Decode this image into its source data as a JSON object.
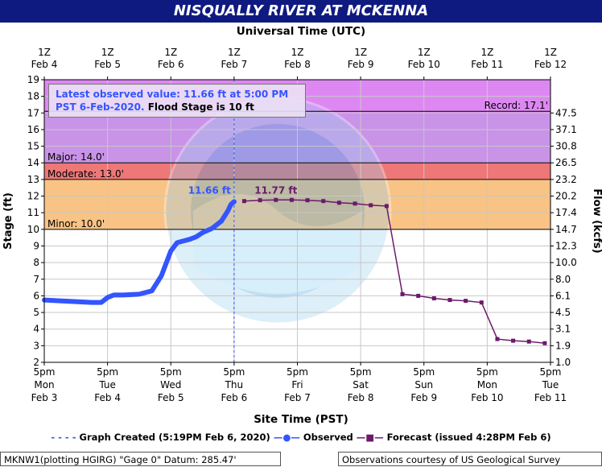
{
  "header": {
    "title": "NISQUALLY RIVER AT MCKENNA",
    "top_axis_label": "Universal Time (UTC)",
    "bottom_axis_label": "Site Time (PST)"
  },
  "latest_box": {
    "line1": "Latest observed value: 11.66 ft at 5:00 PM",
    "line2_blue": "PST 6-Feb-2020.",
    "line2_black": "Flood Stage is 10 ft"
  },
  "legend": {
    "graph_created": "Graph Created (5:19PM Feb 6, 2020)",
    "observed": "Observed",
    "forecast": "Forecast (issued 4:28PM Feb 6)"
  },
  "footer": {
    "left": "MKNW1(plotting HGIRG) \"Gage 0\" Datum: 285.47'",
    "right": "Observations courtesy of US Geological Survey"
  },
  "colors": {
    "header_bg": "#0f1a80",
    "record_band": "#dd88f2",
    "major_band": "#c993e8",
    "moderate_band": "#ee7777",
    "minor_band": "#f8c384",
    "observed": "#3355ff",
    "forecast": "#6b1a6b"
  },
  "chart_data": {
    "type": "line",
    "title": "NISQUALLY RIVER AT MCKENNA",
    "ylabel": "Stage (ft)",
    "y2label": "Flow (kcfs)",
    "xlabel": "Site Time (PST)",
    "x2label": "Universal Time (UTC)",
    "ylim": [
      2,
      19
    ],
    "xlim_days_label": [
      "Feb 3 5pm",
      "Feb 11 5pm"
    ],
    "grid": true,
    "legend_position": "bottom",
    "y_ticks": [
      "2",
      "3",
      "4",
      "5",
      "6",
      "7",
      "8",
      "9",
      "10",
      "11",
      "12",
      "13",
      "14",
      "15",
      "16",
      "17",
      "18",
      "19"
    ],
    "flow_ticks": [
      {
        "stage": 2,
        "label": "1.0"
      },
      {
        "stage": 3,
        "label": "1.9"
      },
      {
        "stage": 4,
        "label": "3.1"
      },
      {
        "stage": 5,
        "label": "4.5"
      },
      {
        "stage": 6,
        "label": "6.1"
      },
      {
        "stage": 7,
        "label": "8.0"
      },
      {
        "stage": 8,
        "label": "10.0"
      },
      {
        "stage": 9,
        "label": "12.3"
      },
      {
        "stage": 10,
        "label": "14.7"
      },
      {
        "stage": 11,
        "label": "17.4"
      },
      {
        "stage": 12,
        "label": "20.2"
      },
      {
        "stage": 13,
        "label": "23.2"
      },
      {
        "stage": 14,
        "label": "26.5"
      },
      {
        "stage": 15,
        "label": "30.8"
      },
      {
        "stage": 16,
        "label": "37.1"
      },
      {
        "stage": 17,
        "label": "47.5"
      }
    ],
    "bottom_ticks": [
      {
        "t": "5pm",
        "d": "Mon",
        "m": "Feb 3"
      },
      {
        "t": "5pm",
        "d": "Tue",
        "m": "Feb 4"
      },
      {
        "t": "5pm",
        "d": "Wed",
        "m": "Feb 5"
      },
      {
        "t": "5pm",
        "d": "Thu",
        "m": "Feb 6"
      },
      {
        "t": "5pm",
        "d": "Fri",
        "m": "Feb 7"
      },
      {
        "t": "5pm",
        "d": "Sat",
        "m": "Feb 8"
      },
      {
        "t": "5pm",
        "d": "Sun",
        "m": "Feb 9"
      },
      {
        "t": "5pm",
        "d": "Mon",
        "m": "Feb 10"
      },
      {
        "t": "5pm",
        "d": "Tue",
        "m": "Feb 11"
      }
    ],
    "top_ticks": [
      {
        "t": "1Z",
        "m": "Feb 4"
      },
      {
        "t": "1Z",
        "m": "Feb 5"
      },
      {
        "t": "1Z",
        "m": "Feb 6"
      },
      {
        "t": "1Z",
        "m": "Feb 7"
      },
      {
        "t": "1Z",
        "m": "Feb 8"
      },
      {
        "t": "1Z",
        "m": "Feb 9"
      },
      {
        "t": "1Z",
        "m": "Feb 10"
      },
      {
        "t": "1Z",
        "m": "Feb 11"
      },
      {
        "t": "1Z",
        "m": "Feb 12"
      }
    ],
    "flood_bands": [
      {
        "name": "record",
        "from": 17,
        "to": 19
      },
      {
        "name": "major",
        "from": 14,
        "to": 17
      },
      {
        "name": "moderate",
        "from": 13,
        "to": 14
      },
      {
        "name": "minor",
        "from": 10,
        "to": 13
      }
    ],
    "thresholds": [
      {
        "label": "Record: 17.1'",
        "value": 17.1
      },
      {
        "label": "Major: 14.0'",
        "value": 14.0
      },
      {
        "label": "Moderate: 13.0'",
        "value": 13.0
      },
      {
        "label": "Minor: 10.0'",
        "value": 10.0
      }
    ],
    "graph_created_day": 3.0,
    "series": [
      {
        "name": "Observed",
        "x_days": [
          0,
          0.25,
          0.5,
          0.75,
          0.9,
          1.0,
          1.1,
          1.25,
          1.5,
          1.7,
          1.85,
          2.0,
          2.1,
          2.2,
          2.3,
          2.4,
          2.5,
          2.65,
          2.8,
          2.9,
          2.95,
          3.0
        ],
        "values": [
          5.75,
          5.7,
          5.65,
          5.6,
          5.6,
          5.9,
          6.05,
          6.05,
          6.1,
          6.3,
          7.2,
          8.7,
          9.2,
          9.3,
          9.4,
          9.55,
          9.8,
          10.05,
          10.5,
          11.1,
          11.5,
          11.66
        ],
        "point_label": "11.66 ft"
      },
      {
        "name": "Forecast",
        "x_days": [
          3.16,
          3.41,
          3.66,
          3.91,
          4.16,
          4.41,
          4.66,
          4.91,
          5.16,
          5.41,
          5.66,
          5.91,
          6.16,
          6.41,
          6.66,
          6.91,
          7.16,
          7.41,
          7.66,
          7.91
        ],
        "values": [
          11.7,
          11.75,
          11.77,
          11.77,
          11.75,
          11.7,
          11.6,
          11.55,
          11.45,
          11.4,
          6.1,
          6.0,
          5.85,
          5.75,
          5.7,
          5.6,
          3.4,
          3.3,
          3.25,
          3.15
        ],
        "point_label": "11.77 ft"
      }
    ]
  }
}
